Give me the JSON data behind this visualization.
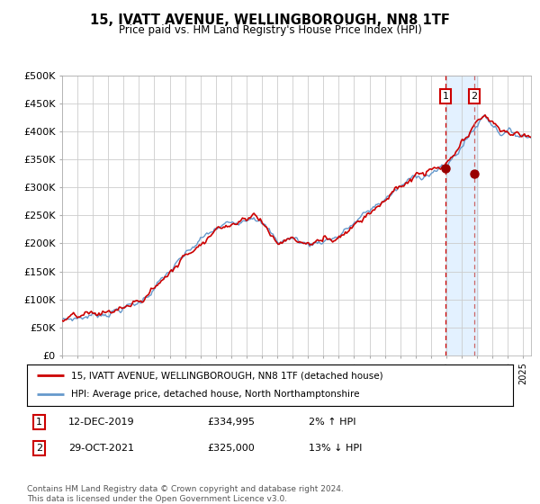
{
  "title": "15, IVATT AVENUE, WELLINGBOROUGH, NN8 1TF",
  "subtitle": "Price paid vs. HM Land Registry's House Price Index (HPI)",
  "legend_line1": "15, IVATT AVENUE, WELLINGBOROUGH, NN8 1TF (detached house)",
  "legend_line2": "HPI: Average price, detached house, North Northamptonshire",
  "annotation1_date": "12-DEC-2019",
  "annotation1_price": "£334,995",
  "annotation1_hpi": "2% ↑ HPI",
  "annotation2_date": "29-OCT-2021",
  "annotation2_price": "£325,000",
  "annotation2_hpi": "13% ↓ HPI",
  "footer": "Contains HM Land Registry data © Crown copyright and database right 2024.\nThis data is licensed under the Open Government Licence v3.0.",
  "ylim": [
    0,
    500000
  ],
  "yticks": [
    0,
    50000,
    100000,
    150000,
    200000,
    250000,
    300000,
    350000,
    400000,
    450000,
    500000
  ],
  "ytick_labels": [
    "£0",
    "£50K",
    "£100K",
    "£150K",
    "£200K",
    "£250K",
    "£300K",
    "£350K",
    "£400K",
    "£450K",
    "£500K"
  ],
  "hpi_color": "#6699cc",
  "price_color": "#cc0000",
  "marker_color": "#990000",
  "vline_color": "#cc0000",
  "bg_highlight_color": "#ddeeff",
  "grid_color": "#cccccc",
  "annotation_box_color": "#cc0000",
  "sale1_year": 2019.95,
  "sale1_value": 334995,
  "sale2_year": 2021.83,
  "sale2_value": 325000
}
